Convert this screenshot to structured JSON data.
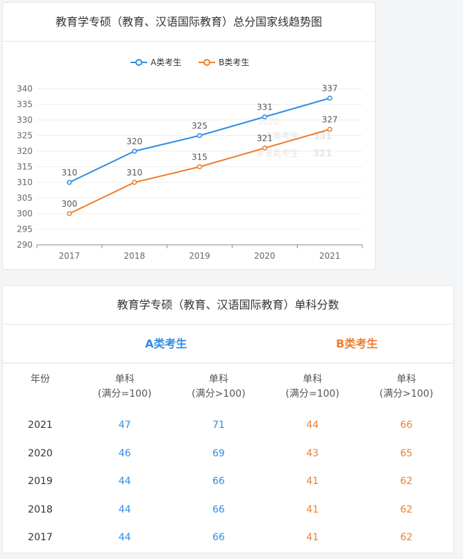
{
  "chart_card": {
    "title": "教育学专硕（教育、汉语国际教育）总分国家线趋势图"
  },
  "chart_data": {
    "type": "line",
    "categories": [
      "2017",
      "2018",
      "2019",
      "2020",
      "2021"
    ],
    "series": [
      {
        "name": "A类考生",
        "values": [
          310,
          320,
          325,
          331,
          337
        ],
        "color": "#2f8de4"
      },
      {
        "name": "B类考生",
        "values": [
          300,
          310,
          315,
          321,
          327
        ],
        "color": "#ee7d2e"
      }
    ],
    "ylim": [
      290,
      340
    ],
    "yticks": [
      290,
      295,
      300,
      305,
      310,
      315,
      320,
      325,
      330,
      335,
      340
    ],
    "legend": "top-center",
    "grid": true,
    "tooltip": {
      "year": "2020",
      "rows": [
        {
          "name": "A类考生",
          "value": "331"
        },
        {
          "name": "B类考生",
          "value": "321"
        }
      ]
    }
  },
  "table_card": {
    "title": "教育学专硕（教育、汉语国际教育）单科分数",
    "group_a": "A类考生",
    "group_b": "B类考生",
    "headers": [
      {
        "line1": "年份",
        "line2": ""
      },
      {
        "line1": "单科",
        "line2": "(满分=100)"
      },
      {
        "line1": "单科",
        "line2": "(满分>100)"
      },
      {
        "line1": "单科",
        "line2": "(满分=100)"
      },
      {
        "line1": "单科",
        "line2": "(满分>100)"
      }
    ],
    "rows": [
      {
        "year": "2021",
        "a1": "47",
        "a2": "71",
        "b1": "44",
        "b2": "66"
      },
      {
        "year": "2020",
        "a1": "46",
        "a2": "69",
        "b1": "43",
        "b2": "65"
      },
      {
        "year": "2019",
        "a1": "44",
        "a2": "66",
        "b1": "41",
        "b2": "62"
      },
      {
        "year": "2018",
        "a1": "44",
        "a2": "66",
        "b1": "41",
        "b2": "62"
      },
      {
        "year": "2017",
        "a1": "44",
        "a2": "66",
        "b1": "41",
        "b2": "62"
      }
    ]
  },
  "colors": {
    "series_a": "#2f8de4",
    "series_b": "#ee7d2e"
  }
}
